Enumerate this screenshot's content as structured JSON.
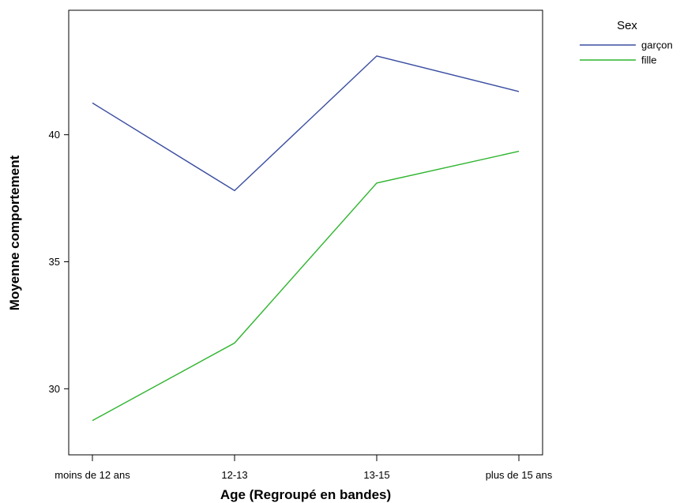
{
  "chart_data": {
    "type": "line",
    "title": "",
    "xlabel": "Age (Regroupé en bandes)",
    "ylabel": "Moyenne comportement",
    "categories": [
      "moins de 12 ans",
      "12-13",
      "13-15",
      "plus de 15 ans"
    ],
    "series": [
      {
        "name": "garçon",
        "color": "#3b4ea0",
        "values": [
          41.25,
          37.8,
          43.1,
          41.7
        ]
      },
      {
        "name": "fille",
        "color": "#2fb52f",
        "values": [
          28.75,
          31.8,
          38.1,
          39.35
        ]
      }
    ],
    "ylim": [
      27.4,
      44.9
    ],
    "yticks": [
      30,
      35,
      40
    ],
    "legend": {
      "title": "Sex",
      "position": "top-right"
    },
    "grid": false
  }
}
